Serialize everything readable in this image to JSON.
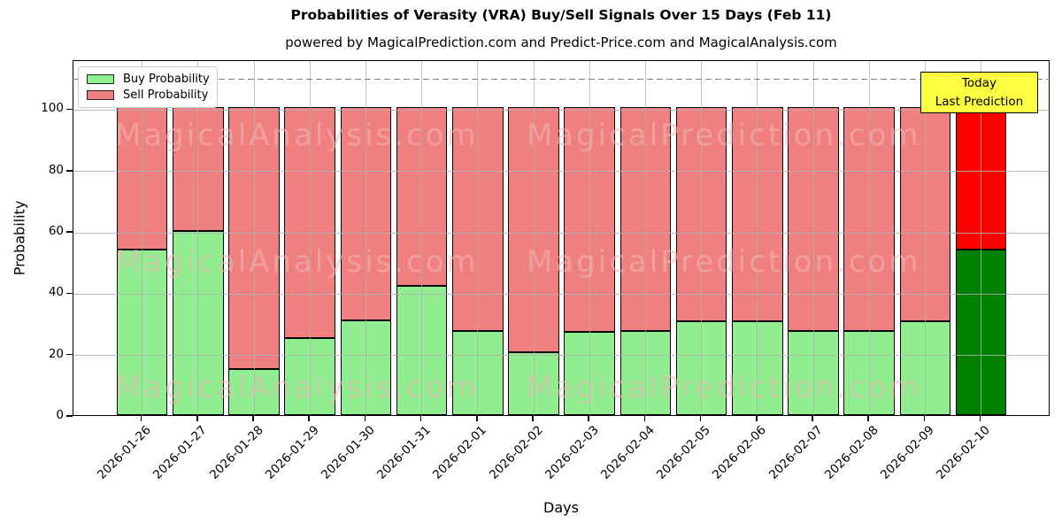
{
  "title": "Probabilities of Verasity (VRA) Buy/Sell Signals Over 15 Days (Feb 11)",
  "subtitle": "powered by MagicalPrediction.com and Predict-Price.com and MagicalAnalysis.com",
  "legend": {
    "items": [
      {
        "label": "Buy Probability",
        "color": "#90EE90"
      },
      {
        "label": "Sell Probability",
        "color": "#F08080"
      }
    ]
  },
  "annotation_box": {
    "line1": "Today",
    "line2": "Last Prediction",
    "bg_color": "#FDFD42"
  },
  "watermarks": {
    "left_text": "MagicalAnalysis.com",
    "right_text": "MagicalPrediction.com"
  },
  "axes": {
    "xlabel": "Days",
    "ylabel": "Probability",
    "yticks": [
      0,
      20,
      40,
      60,
      80,
      100
    ],
    "ylim": [
      0,
      116
    ],
    "dashed_line_y": 110,
    "grid": "on"
  },
  "chart_data": {
    "type": "bar",
    "stacked": true,
    "title": "Probabilities of Verasity (VRA) Buy/Sell Signals Over 15 Days (Feb 11)",
    "xlabel": "Days",
    "ylabel": "Probability",
    "ylim": [
      0,
      116
    ],
    "legend_position": "upper left",
    "categories": [
      "2026-01-26",
      "2026-01-27",
      "2026-01-28",
      "2026-01-29",
      "2026-01-30",
      "2026-01-31",
      "2026-02-01",
      "2026-02-02",
      "2026-02-03",
      "2026-02-04",
      "2026-02-05",
      "2026-02-06",
      "2026-02-07",
      "2026-02-08",
      "2026-02-09",
      "2026-02-10"
    ],
    "series": [
      {
        "name": "Buy Probability",
        "values": [
          54,
          60,
          15,
          25,
          31,
          42,
          27.5,
          20.5,
          27,
          27.5,
          30.5,
          30.5,
          27.5,
          27.5,
          30.5,
          54
        ]
      },
      {
        "name": "Sell Probability",
        "values": [
          46,
          40,
          85,
          75,
          69,
          58,
          72.5,
          79.5,
          73,
          72.5,
          69.5,
          69.5,
          72.5,
          72.5,
          69.5,
          46
        ]
      }
    ],
    "today_index": 15,
    "colors": {
      "buy": "#90EE90",
      "sell": "#F08080",
      "buy_today": "#008000",
      "sell_today": "#FF0000",
      "bar_edge": "#000000",
      "grid": "#b0b0b0",
      "dashed_line": "#808080"
    }
  }
}
